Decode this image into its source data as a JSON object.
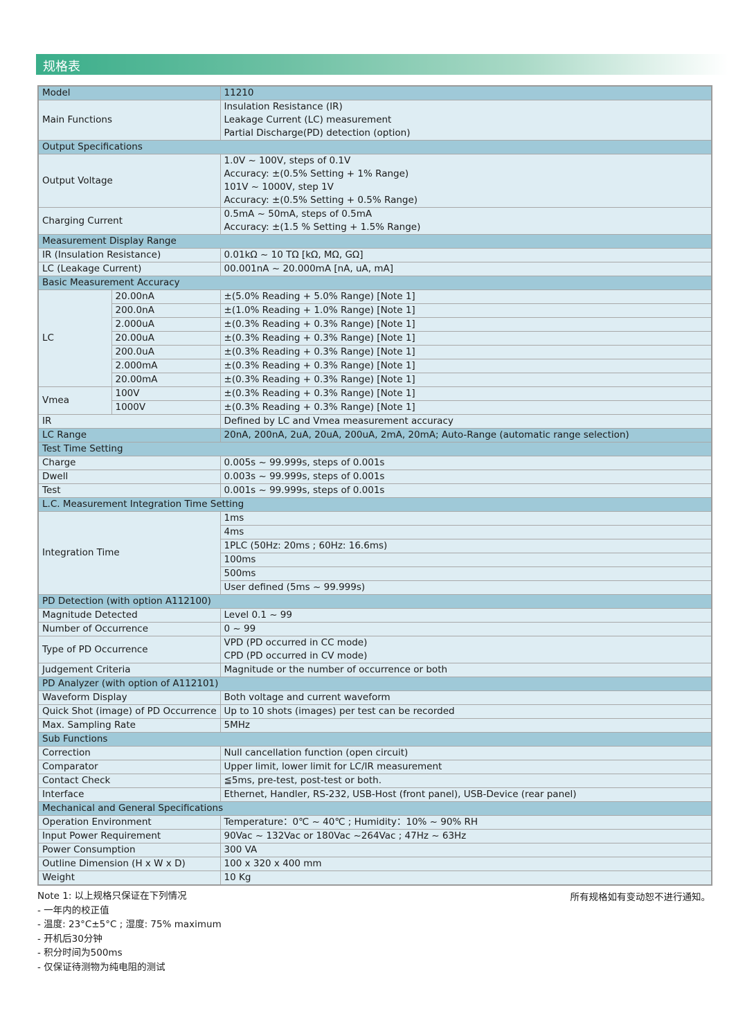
{
  "banner_title": "规格表",
  "rows": [
    {
      "type": "kv",
      "dark": true,
      "label": "Model",
      "values": [
        "11210"
      ]
    },
    {
      "type": "kv",
      "label": "Main Functions",
      "values": [
        "Insulation Resistance (IR)",
        "Leakage Current (LC) measurement",
        "Partial Discharge(PD) detection (option)"
      ]
    },
    {
      "type": "section",
      "label": "Output Specifications"
    },
    {
      "type": "kv",
      "label": "Output Voltage",
      "values": [
        "1.0V ~ 100V, steps of 0.1V",
        "Accuracy: ±(0.5% Setting + 1% Range)",
        "101V ~ 1000V, step 1V",
        "Accuracy: ±(0.5% Setting + 0.5% Range)"
      ]
    },
    {
      "type": "kv",
      "label": "Charging Current",
      "values": [
        "0.5mA ~ 50mA, steps of 0.5mA",
        "Accuracy: ±(1.5 % Setting + 1.5% Range)"
      ]
    },
    {
      "type": "section",
      "label": "Measurement Display Range"
    },
    {
      "type": "kv",
      "label": "IR (Insulation Resistance)",
      "values": [
        "0.01kΩ ~ 10 TΩ [kΩ, MΩ, GΩ]"
      ]
    },
    {
      "type": "kv",
      "label": "LC (Leakage Current)",
      "values": [
        "00.001nA ~ 20.000mA [nA, uA, mA]"
      ]
    },
    {
      "type": "section",
      "label": "Basic Measurement Accuracy"
    },
    {
      "type": "group",
      "label": "LC",
      "rows": [
        {
          "sub": "20.00nA",
          "value": "±(5.0% Reading + 5.0% Range) [Note 1]"
        },
        {
          "sub": "200.0nA",
          "value": "±(1.0% Reading + 1.0% Range) [Note 1]"
        },
        {
          "sub": "2.000uA",
          "value": "±(0.3% Reading + 0.3% Range) [Note 1]"
        },
        {
          "sub": "20.00uA",
          "value": "±(0.3% Reading + 0.3% Range) [Note 1]"
        },
        {
          "sub": "200.0uA",
          "value": "±(0.3% Reading + 0.3% Range) [Note 1]"
        },
        {
          "sub": "2.000mA",
          "value": "±(0.3% Reading + 0.3% Range) [Note 1]"
        },
        {
          "sub": "20.00mA",
          "value": "±(0.3% Reading + 0.3% Range) [Note 1]"
        }
      ]
    },
    {
      "type": "group",
      "label": "Vmea",
      "rows": [
        {
          "sub": "100V",
          "value": "±(0.3% Reading + 0.3% Range) [Note 1]"
        },
        {
          "sub": "1000V",
          "value": "±(0.3% Reading + 0.3% Range) [Note 1]"
        }
      ]
    },
    {
      "type": "kv",
      "label": "IR",
      "values": [
        "Defined by LC and Vmea measurement accuracy"
      ]
    },
    {
      "type": "kv",
      "dark": true,
      "label": "LC Range",
      "values": [
        "20nA, 200nA, 2uA, 20uA, 200uA, 2mA, 20mA; Auto-Range (automatic range selection)"
      ]
    },
    {
      "type": "section",
      "label": "Test Time Setting"
    },
    {
      "type": "kv",
      "label": "Charge",
      "values": [
        "0.005s ~ 99.999s, steps of 0.001s"
      ]
    },
    {
      "type": "kv",
      "label": "Dwell",
      "values": [
        "0.003s ~ 99.999s, steps of 0.001s"
      ]
    },
    {
      "type": "kv",
      "label": "Test",
      "values": [
        "0.001s ~ 99.999s, steps of 0.001s"
      ]
    },
    {
      "type": "section",
      "label": "L.C. Measurement Integration Time Setting"
    },
    {
      "type": "multi",
      "label": "Integration Time",
      "values": [
        "1ms",
        "4ms",
        "1PLC  (50Hz: 20ms ; 60Hz: 16.6ms)",
        "100ms",
        "500ms",
        "User defined (5ms ~ 99.999s)"
      ]
    },
    {
      "type": "section",
      "label": "PD Detection (with option A112100)"
    },
    {
      "type": "kv",
      "label": "Magnitude Detected",
      "values": [
        "Level 0.1 ~ 99"
      ]
    },
    {
      "type": "kv",
      "label": "Number of Occurrence",
      "values": [
        "0 ~ 99"
      ]
    },
    {
      "type": "kv",
      "label": "Type of PD Occurrence",
      "values": [
        "VPD (PD occurred in CC mode)",
        "CPD (PD occurred in CV mode)"
      ]
    },
    {
      "type": "kv",
      "label": "Judgement Criteria",
      "values": [
        "Magnitude or the number of occurrence or both"
      ]
    },
    {
      "type": "section",
      "label": "PD Analyzer (with option of A112101)"
    },
    {
      "type": "kv",
      "label": "Waveform Display",
      "values": [
        "Both voltage and current waveform"
      ]
    },
    {
      "type": "kv",
      "label": "Quick Shot (image) of PD Occurrence",
      "values": [
        "Up to 10 shots (images) per test can be recorded"
      ]
    },
    {
      "type": "kv",
      "label": "Max. Sampling Rate",
      "values": [
        "5MHz"
      ]
    },
    {
      "type": "section",
      "label": "Sub Functions"
    },
    {
      "type": "kv",
      "label": "Correction",
      "values": [
        "Null cancellation function (open circuit)"
      ]
    },
    {
      "type": "kv",
      "label": "Comparator",
      "values": [
        "Upper limit, lower limit for LC/IR measurement"
      ]
    },
    {
      "type": "kv",
      "label": "Contact Check",
      "values": [
        "≦5ms, pre-test, post-test or both."
      ]
    },
    {
      "type": "kv",
      "label": "Interface",
      "values": [
        "Ethernet, Handler, RS-232, USB-Host (front panel), USB-Device (rear panel)"
      ]
    },
    {
      "type": "section",
      "label": "Mechanical and General Specifications"
    },
    {
      "type": "kv",
      "label": "Operation Environment",
      "values": [
        "Temperature：0℃ ~ 40℃ ; Humidity：10% ~ 90% RH"
      ]
    },
    {
      "type": "kv",
      "label": "Input Power Requirement",
      "values": [
        "90Vac ~ 132Vac or 180Vac ~264Vac ; 47Hz ~ 63Hz"
      ]
    },
    {
      "type": "kv",
      "label": "Power Consumption",
      "values": [
        "300 VA"
      ]
    },
    {
      "type": "kv",
      "label": "Outline Dimension (H x W x D)",
      "values": [
        "100 x 320 x 400 mm"
      ]
    },
    {
      "type": "kv",
      "label": "Weight",
      "values": [
        "10 Kg"
      ]
    }
  ],
  "notes": {
    "title": "Note 1: 以上规格只保证在下列情况",
    "items": [
      "- 一年内的校正值",
      "- 温度: 23°C±5°C ; 湿度: 75% maximum",
      "- 开机后30分钟",
      "- 积分时间为500ms",
      "- 仅保证待测物为纯电阻的测试"
    ],
    "disclaimer": "所有规格如有变动恕不进行通知。"
  }
}
